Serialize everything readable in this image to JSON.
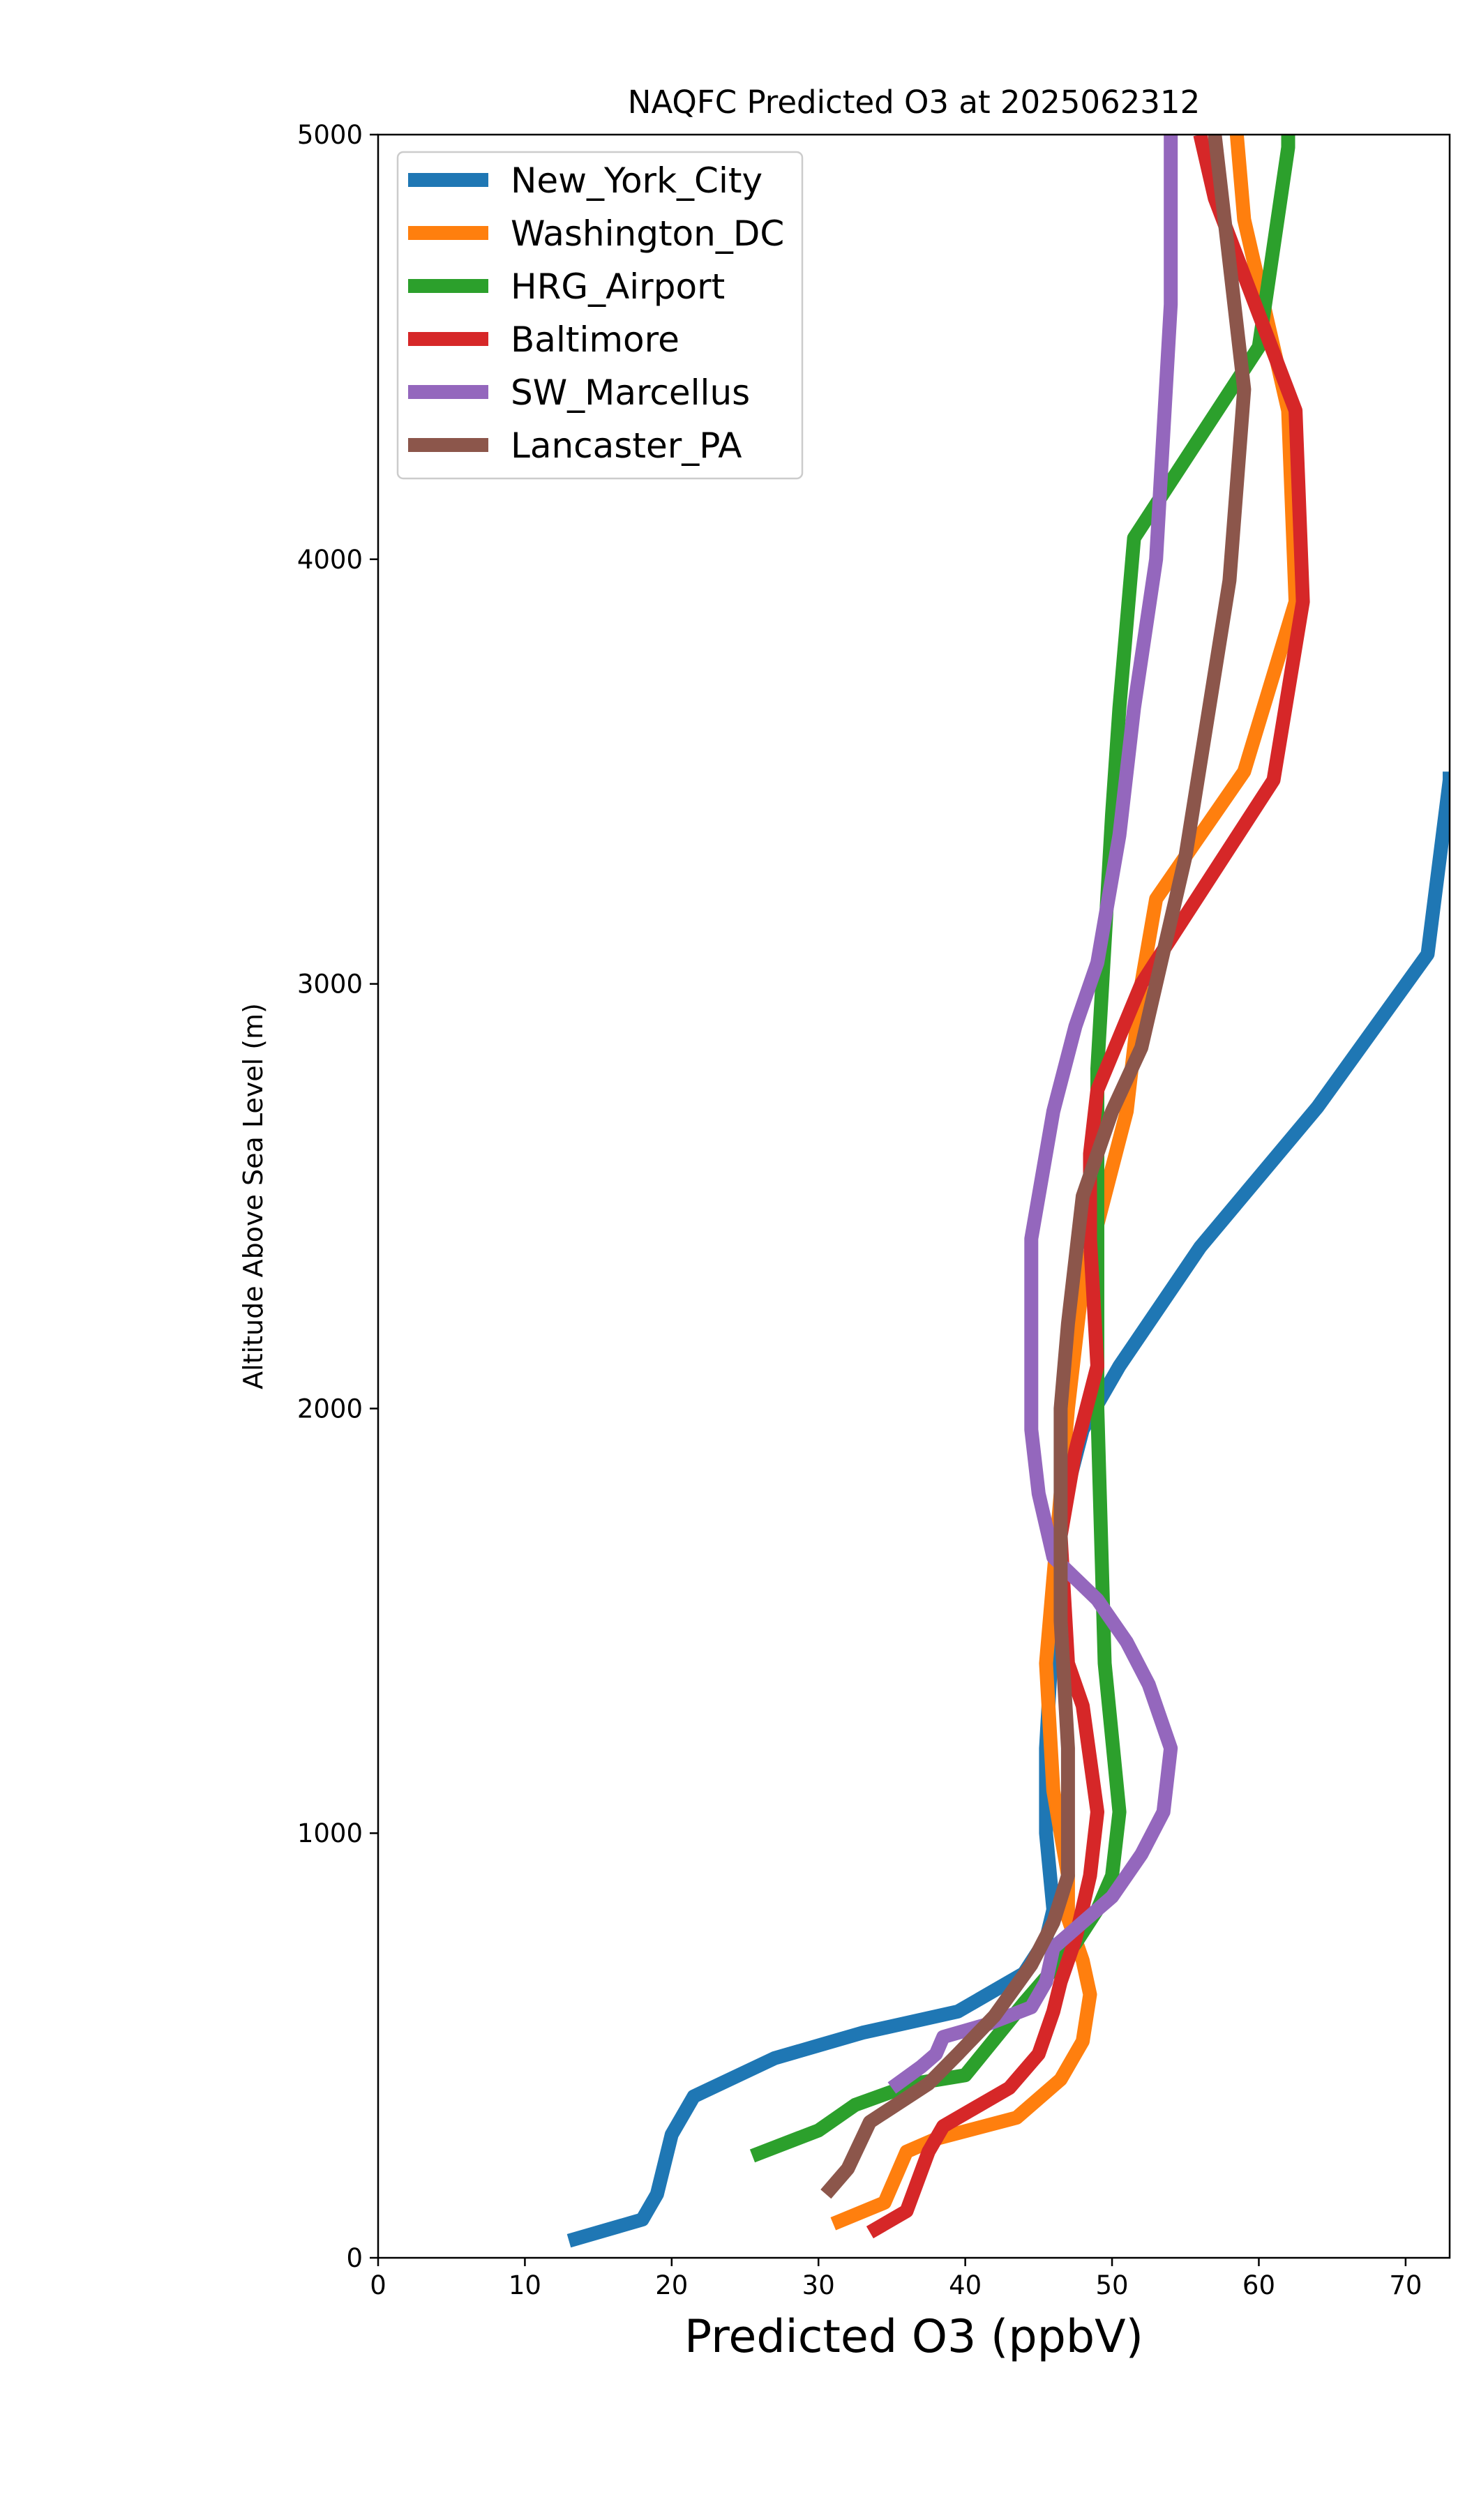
{
  "chart_data": {
    "type": "line",
    "title": "NAQFC Predicted O3 at 2025062312",
    "xlabel": "Predicted O3 (ppbV)",
    "ylabel": "Altitude Above Sea Level (m)",
    "xlim": [
      0,
      73
    ],
    "ylim": [
      0,
      5000
    ],
    "xticks": [
      0,
      10,
      20,
      30,
      40,
      50,
      60,
      70
    ],
    "yticks": [
      0,
      1000,
      2000,
      3000,
      4000,
      5000
    ],
    "grid": false,
    "legend_position": "upper left",
    "series": [
      {
        "name": "New_York_City",
        "color": "#1f77b4",
        "points": [
          [
            13,
            40
          ],
          [
            18,
            90
          ],
          [
            19,
            150
          ],
          [
            20,
            290
          ],
          [
            21.5,
            380
          ],
          [
            27,
            470
          ],
          [
            33,
            530
          ],
          [
            39.5,
            580
          ],
          [
            44,
            670
          ],
          [
            45.5,
            750
          ],
          [
            46,
            820
          ],
          [
            45.5,
            1000
          ],
          [
            45.5,
            1200
          ],
          [
            46,
            1500
          ],
          [
            46.5,
            1750
          ],
          [
            48,
            1950
          ],
          [
            50.5,
            2100
          ],
          [
            56,
            2380
          ],
          [
            64,
            2710
          ],
          [
            71.5,
            3070
          ],
          [
            73,
            3480
          ],
          [
            73,
            3500
          ]
        ]
      },
      {
        "name": "Washington_DC",
        "color": "#ff7f0e",
        "points": [
          [
            31,
            80
          ],
          [
            34.5,
            130
          ],
          [
            36,
            250
          ],
          [
            38,
            280
          ],
          [
            43.5,
            330
          ],
          [
            46.5,
            420
          ],
          [
            48,
            510
          ],
          [
            48.5,
            620
          ],
          [
            48,
            700
          ],
          [
            47,
            800
          ],
          [
            47,
            900
          ],
          [
            46,
            1100
          ],
          [
            45.5,
            1400
          ],
          [
            47,
            2000
          ],
          [
            48,
            2300
          ],
          [
            51,
            2700
          ],
          [
            52,
            3000
          ],
          [
            53,
            3200
          ],
          [
            59,
            3500
          ],
          [
            62.5,
            3900
          ],
          [
            62,
            4350
          ],
          [
            59,
            4800
          ],
          [
            58.5,
            5000
          ]
        ]
      },
      {
        "name": "HRG_Airport",
        "color": "#2ca02c",
        "points": [
          [
            25.5,
            240
          ],
          [
            30,
            300
          ],
          [
            32.5,
            360
          ],
          [
            36.5,
            410
          ],
          [
            40,
            430
          ],
          [
            44,
            600
          ],
          [
            46,
            680
          ],
          [
            47.5,
            740
          ],
          [
            49,
            820
          ],
          [
            50,
            900
          ],
          [
            50.5,
            1050
          ],
          [
            49.5,
            1400
          ],
          [
            49,
            2000
          ],
          [
            49,
            2800
          ],
          [
            50,
            3400
          ],
          [
            50.5,
            3650
          ],
          [
            51.5,
            4050
          ],
          [
            60,
            4500
          ],
          [
            62,
            4970
          ],
          [
            62,
            5000
          ]
        ]
      },
      {
        "name": "Baltimore",
        "color": "#d62728",
        "points": [
          [
            33.5,
            60
          ],
          [
            36,
            110
          ],
          [
            37.5,
            250
          ],
          [
            38.5,
            310
          ],
          [
            43,
            400
          ],
          [
            45,
            480
          ],
          [
            46,
            580
          ],
          [
            46.5,
            650
          ],
          [
            47.5,
            750
          ],
          [
            48.5,
            900
          ],
          [
            49,
            1050
          ],
          [
            48,
            1300
          ],
          [
            47,
            1400
          ],
          [
            46.5,
            1700
          ],
          [
            47.5,
            1900
          ],
          [
            49,
            2100
          ],
          [
            48.5,
            2400
          ],
          [
            48.5,
            2600
          ],
          [
            49,
            2750
          ],
          [
            52,
            3000
          ],
          [
            61,
            3480
          ],
          [
            63,
            3900
          ],
          [
            62.5,
            4350
          ],
          [
            57,
            4850
          ],
          [
            56,
            5000
          ]
        ]
      },
      {
        "name": "SW_Marcellus",
        "color": "#9467bd",
        "points": [
          [
            35,
            400
          ],
          [
            37,
            450
          ],
          [
            38,
            480
          ],
          [
            38.5,
            520
          ],
          [
            41.5,
            550
          ],
          [
            44.5,
            590
          ],
          [
            45.5,
            650
          ],
          [
            46,
            730
          ],
          [
            48,
            790
          ],
          [
            50,
            850
          ],
          [
            52,
            950
          ],
          [
            53.5,
            1050
          ],
          [
            54,
            1200
          ],
          [
            52.5,
            1350
          ],
          [
            51,
            1450
          ],
          [
            49,
            1550
          ],
          [
            46,
            1650
          ],
          [
            45,
            1800
          ],
          [
            44.5,
            1950
          ],
          [
            44.5,
            2150
          ],
          [
            44.5,
            2400
          ],
          [
            46,
            2700
          ],
          [
            47.5,
            2900
          ],
          [
            49,
            3050
          ],
          [
            50.5,
            3350
          ],
          [
            51.5,
            3650
          ],
          [
            53,
            4000
          ],
          [
            54,
            4600
          ],
          [
            54,
            5000
          ]
        ]
      },
      {
        "name": "Lancaster_PA",
        "color": "#8c564b",
        "points": [
          [
            30.5,
            150
          ],
          [
            32,
            210
          ],
          [
            33.5,
            320
          ],
          [
            37.5,
            410
          ],
          [
            39.5,
            480
          ],
          [
            42,
            570
          ],
          [
            44.5,
            690
          ],
          [
            46,
            790
          ],
          [
            47,
            900
          ],
          [
            47,
            1200
          ],
          [
            46.5,
            1500
          ],
          [
            46.5,
            2000
          ],
          [
            47,
            2200
          ],
          [
            48,
            2500
          ],
          [
            50,
            2700
          ],
          [
            52,
            2850
          ],
          [
            55,
            3300
          ],
          [
            58,
            3950
          ],
          [
            59,
            4400
          ],
          [
            57,
            5000
          ]
        ]
      }
    ]
  }
}
